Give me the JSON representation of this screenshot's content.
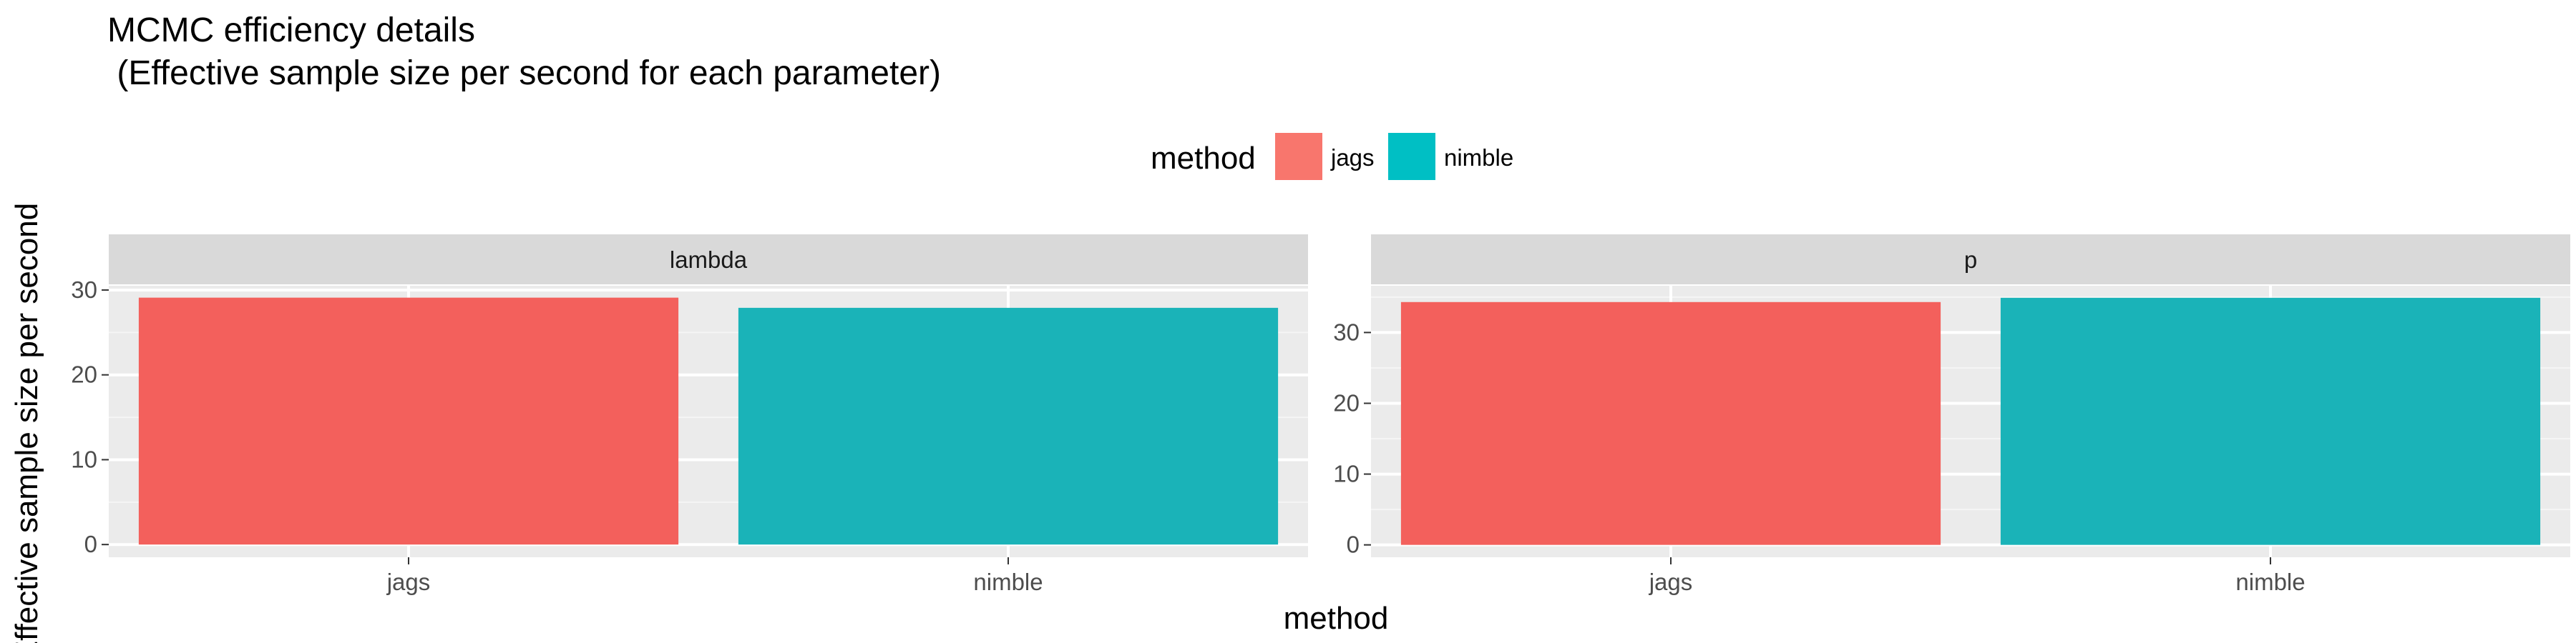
{
  "chart_data": {
    "type": "bar",
    "title_line1": "MCMC efficiency details",
    "title_line2": " (Effective sample size per second for each parameter)",
    "xlabel": "method",
    "ylabel": "Effective sample size per second",
    "legend": {
      "title": "method",
      "position": "top",
      "entries": [
        {
          "label": "jags",
          "color": "#f8766d"
        },
        {
          "label": "nimble",
          "color": "#00bfc4"
        }
      ]
    },
    "categories": [
      "jags",
      "nimble"
    ],
    "colors": {
      "jags": "#f3605c",
      "nimble": "#1ab3b8"
    },
    "facets": [
      {
        "strip": "lambda",
        "values": [
          29.1,
          27.9
        ],
        "ylim": [
          -1.5,
          30.5
        ],
        "yticks": [
          0,
          10,
          20,
          30
        ]
      },
      {
        "strip": "p",
        "values": [
          34.3,
          34.9
        ],
        "ylim": [
          -1.75,
          36.6
        ],
        "yticks": [
          0,
          10,
          20,
          30
        ]
      }
    ],
    "grid": true
  }
}
